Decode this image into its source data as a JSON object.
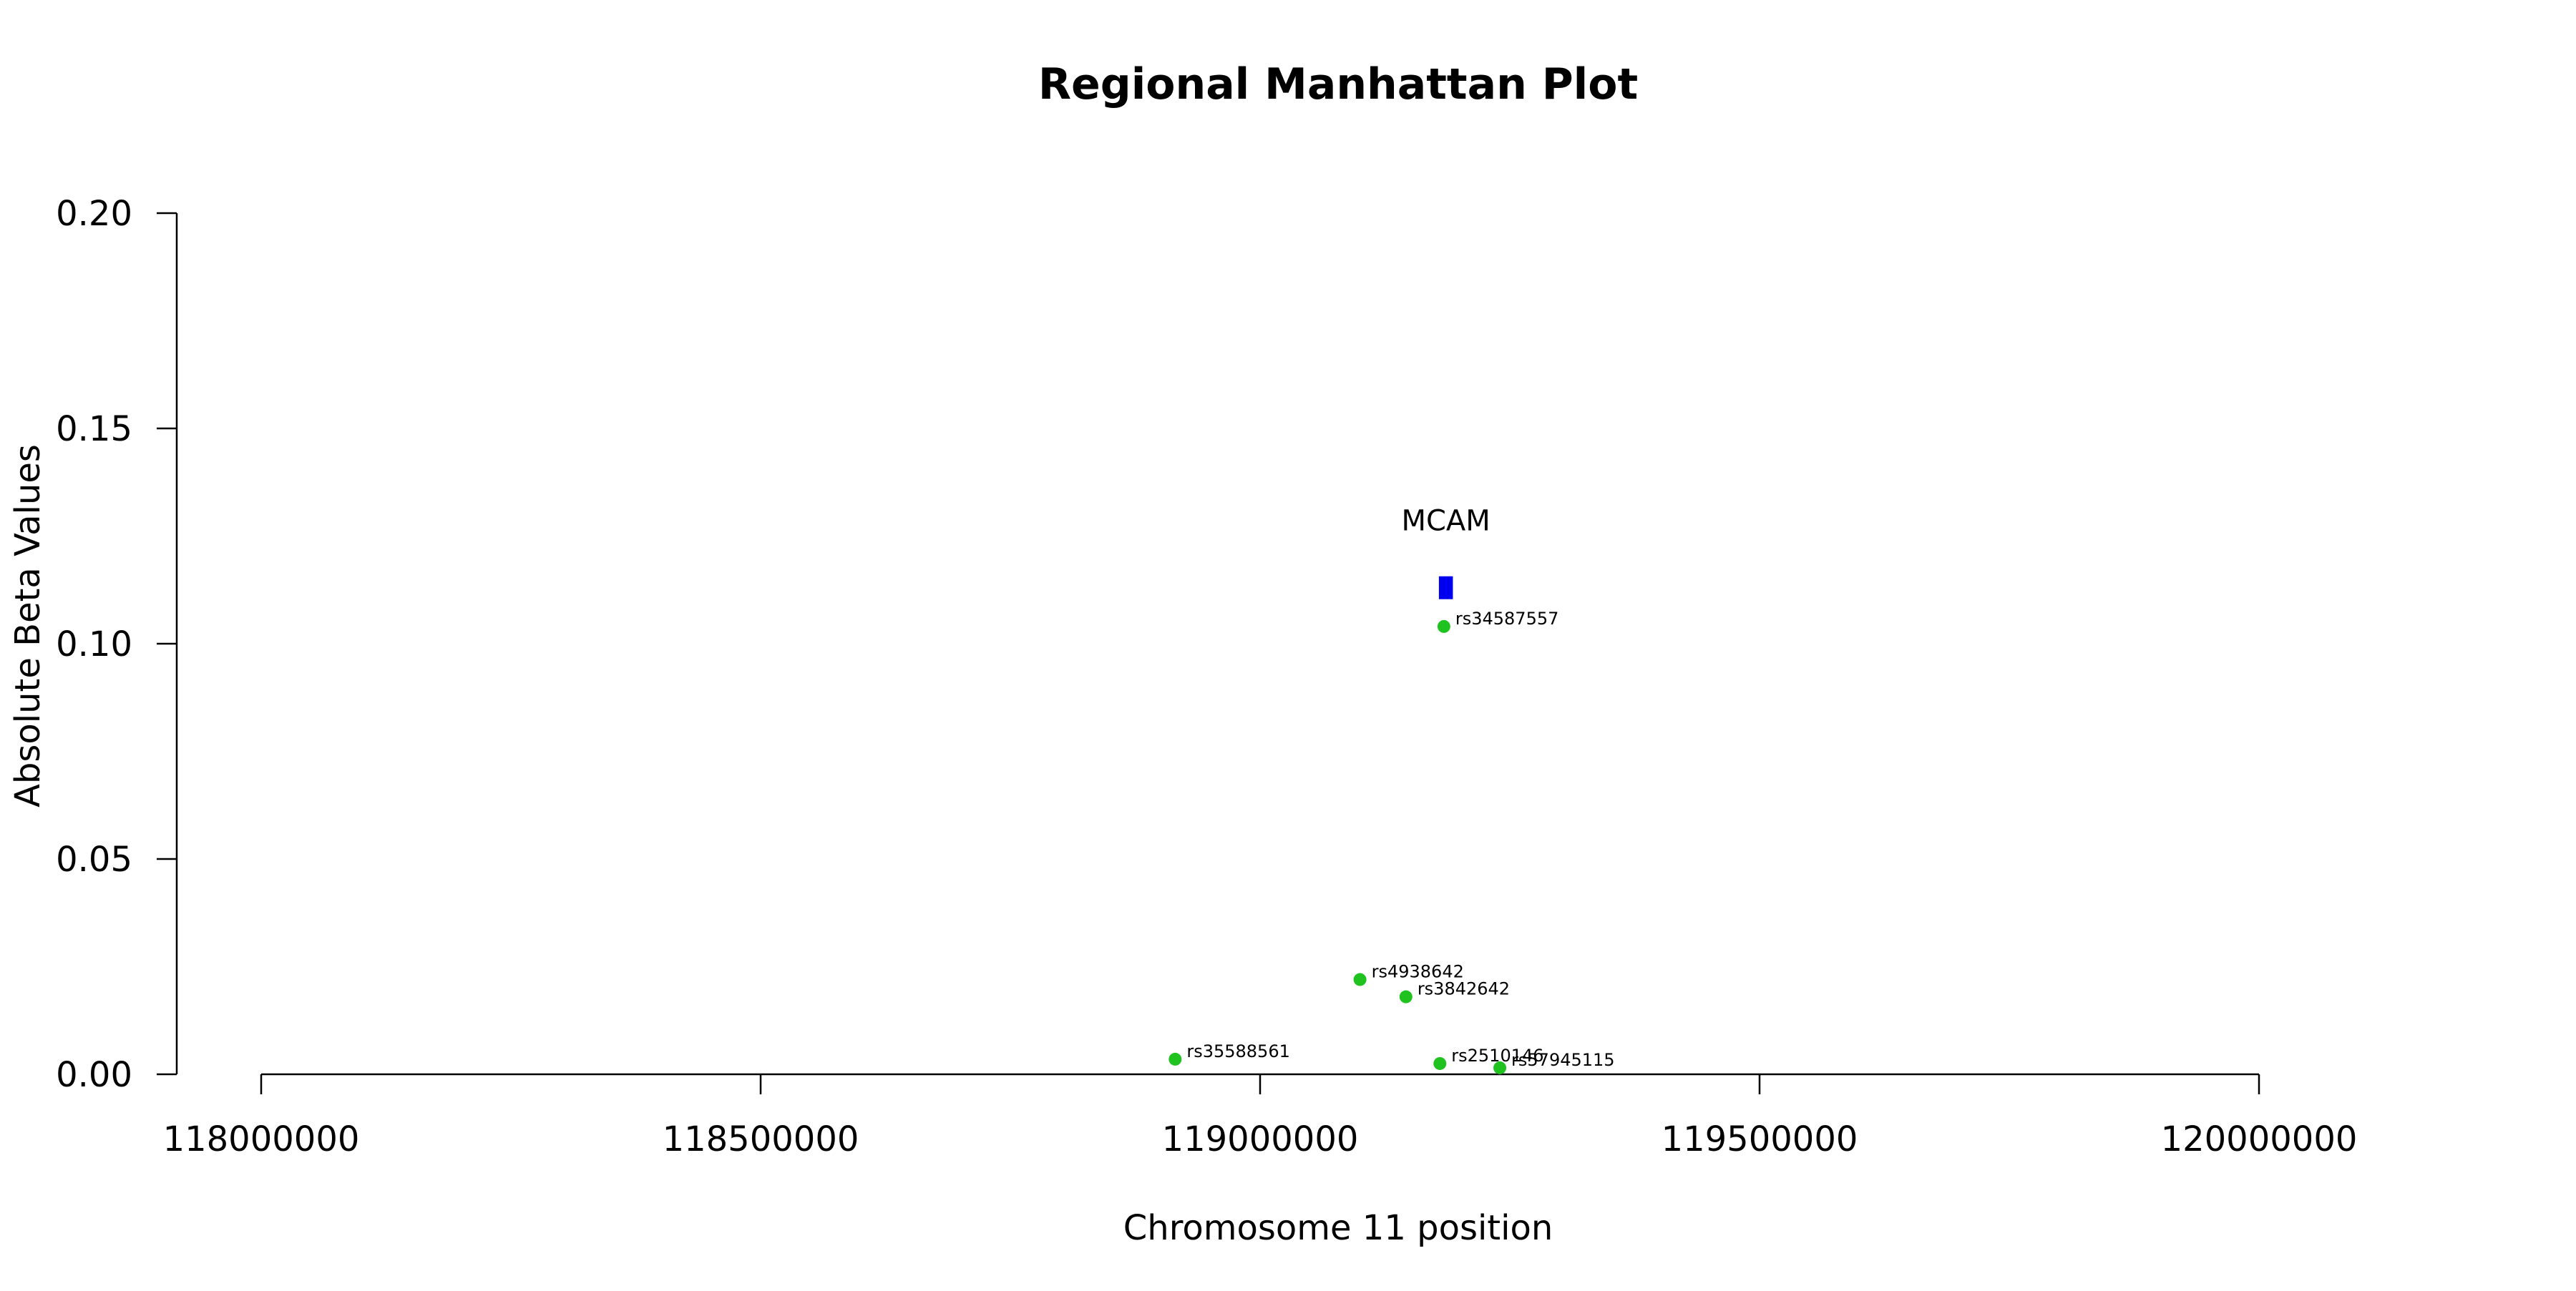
{
  "chart_data": {
    "type": "scatter",
    "title": "Regional Manhattan Plot",
    "xlabel": "Chromosome 11 position",
    "ylabel": "Absolute Beta Values",
    "xlim": [
      118000000,
      120000000
    ],
    "ylim": [
      0,
      0.2
    ],
    "x_ticks": [
      "118000000",
      "118500000",
      "119000000",
      "119500000",
      "120000000"
    ],
    "y_ticks": [
      "0.00",
      "0.05",
      "0.10",
      "0.15",
      "0.20"
    ],
    "grid": false,
    "snps": [
      {
        "label": "rs34587557",
        "x": 119184000,
        "y": 0.104
      },
      {
        "label": "rs4938642",
        "x": 119100000,
        "y": 0.022
      },
      {
        "label": "rs3842642",
        "x": 119146000,
        "y": 0.018
      },
      {
        "label": "rs35588561",
        "x": 118915000,
        "y": 0.0035
      },
      {
        "label": "rs2510146",
        "x": 119180000,
        "y": 0.0025
      },
      {
        "label": "rs57945115",
        "x": 119240000,
        "y": 0.0015
      }
    ],
    "gene": {
      "label": "MCAM",
      "start": 119179000,
      "end": 119193000,
      "y": 0.113
    },
    "colors": {
      "snp": "#1fc21f",
      "gene": "#0000ee",
      "axis": "#000000"
    }
  }
}
